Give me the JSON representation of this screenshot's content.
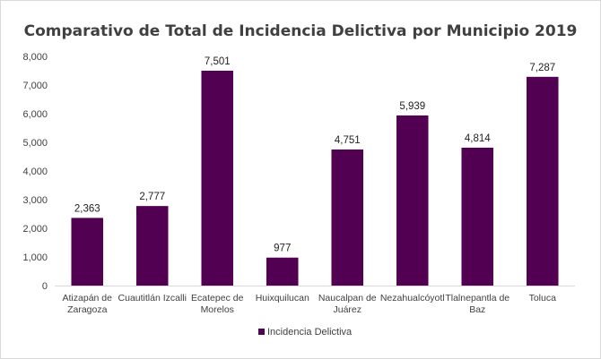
{
  "chart_data": {
    "type": "bar",
    "title": "Comparativo de Total de Incidencia Delictiva por Municipio 2019",
    "categories": [
      [
        "Atizapán de",
        "Zaragoza"
      ],
      [
        "Cuautitlán Izcalli"
      ],
      [
        "Ecatepec de",
        "Morelos"
      ],
      [
        "Huixquilucan"
      ],
      [
        "Naucalpan de",
        "Juárez"
      ],
      [
        "Nezahualcóyotl"
      ],
      [
        "Tlalnepantla de",
        "Baz"
      ],
      [
        "Toluca"
      ]
    ],
    "series": [
      {
        "name": "Incidencia Delictiva",
        "values": [
          2363,
          2777,
          7501,
          977,
          4751,
          5939,
          4814,
          7287
        ]
      }
    ],
    "data_labels": [
      "2,363",
      "2,777",
      "7,501",
      "977",
      "4,751",
      "5,939",
      "4,814",
      "7,287"
    ],
    "yticks": [
      "0",
      "1,000",
      "2,000",
      "3,000",
      "4,000",
      "5,000",
      "6,000",
      "7,000",
      "8,000"
    ],
    "ylim": [
      0,
      8000
    ],
    "xlabel": "",
    "ylabel": "",
    "grid": false,
    "legend_position": "bottom",
    "bar_color": "#520052"
  }
}
